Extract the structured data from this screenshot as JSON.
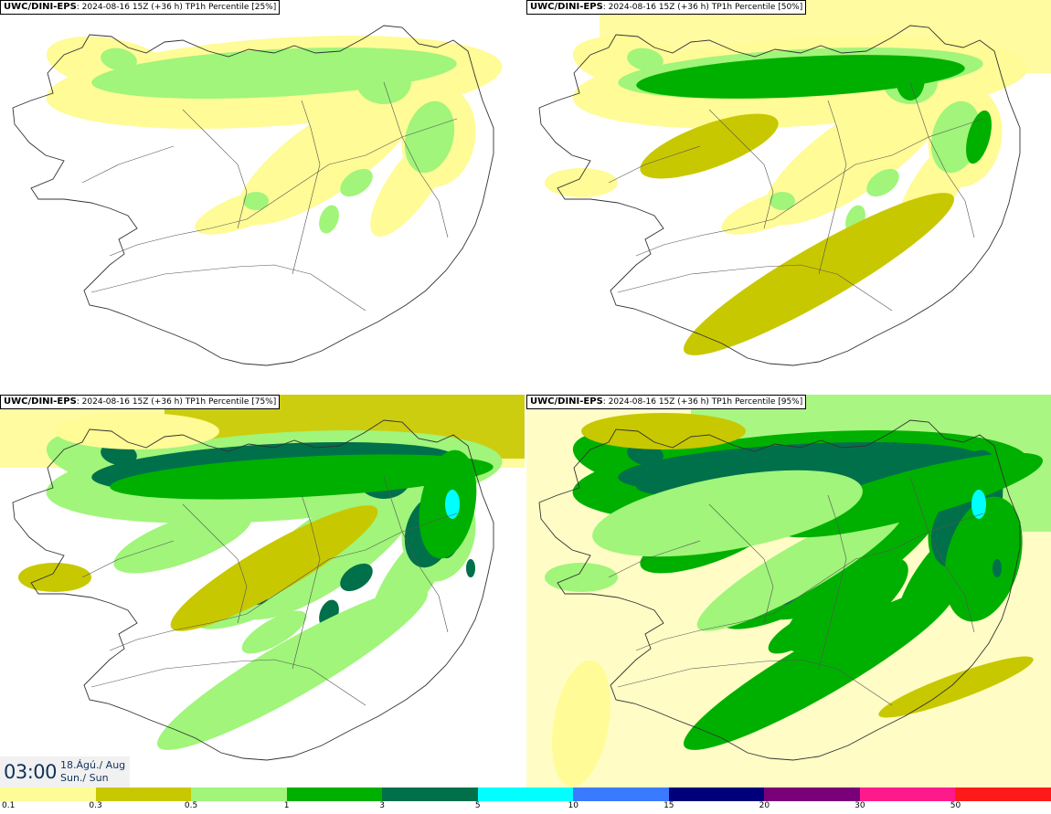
{
  "panels": [
    {
      "model": "UWC/DINI-EPS",
      "run": ": 2024-08-16 15Z (+36 h) TP1h Percentile [25%]",
      "level": 1
    },
    {
      "model": "UWC/DINI-EPS",
      "run": ": 2024-08-16 15Z (+36 h) TP1h Percentile [50%]",
      "level": 2
    },
    {
      "model": "UWC/DINI-EPS",
      "run": ": 2024-08-16 15Z (+36 h) TP1h Percentile [75%]",
      "level": 3
    },
    {
      "model": "UWC/DINI-EPS",
      "run": ": 2024-08-16 15Z (+36 h) TP1h Percentile [95%]",
      "level": 4
    }
  ],
  "valid_time": {
    "time": "03:00",
    "date_line1": "18.Ágú./ Aug",
    "date_line2": "Sun./ Sun"
  },
  "legend": {
    "colors": [
      "#fffb96",
      "#c8c800",
      "#a0f57a",
      "#00b000",
      "#00704a",
      "#00ffff",
      "#3a7aff",
      "#00007a",
      "#7a007a",
      "#ff1a8c",
      "#ff1a1a"
    ],
    "ticks": [
      "0.1",
      "0.3",
      "0.5",
      "1",
      "3",
      "5",
      "10",
      "15",
      "20",
      "30",
      "50"
    ]
  }
}
